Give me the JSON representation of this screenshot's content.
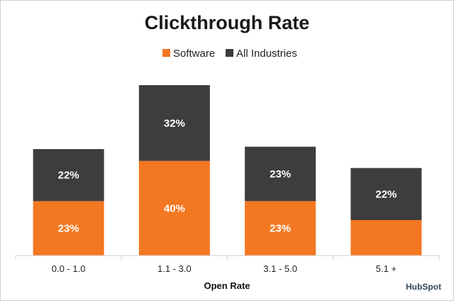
{
  "chart_data": {
    "type": "bar",
    "stacked": true,
    "title": "Clickthrough Rate",
    "xlabel": "Open Rate",
    "ylabel": "",
    "categories": [
      "0.0 - 1.0",
      "1.1 - 3.0",
      "3.1 - 5.0",
      "5.1 +"
    ],
    "series": [
      {
        "name": "Software",
        "color": "#f47721",
        "values": [
          23,
          40,
          23,
          15
        ],
        "labels": [
          "23%",
          "40%",
          "23%",
          ""
        ]
      },
      {
        "name": "All Industries",
        "color": "#3d3d3d",
        "values": [
          22,
          32,
          23,
          22
        ],
        "labels": [
          "22%",
          "32%",
          "23%",
          "22%"
        ]
      }
    ],
    "ylim": [
      0,
      78
    ],
    "grid": false,
    "legend_position": "top-center"
  },
  "brand": {
    "name": "HubSpot",
    "color": "#33475b"
  }
}
